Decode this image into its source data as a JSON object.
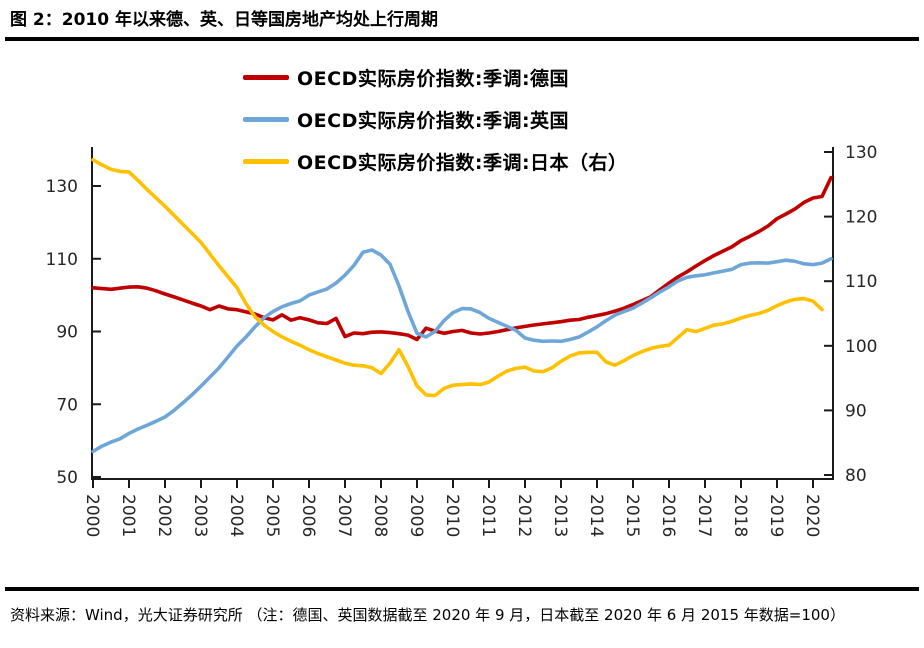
{
  "header": {
    "title": "图 2：2010 年以来德、英、日等国房地产均处上行周期"
  },
  "footer": {
    "source": "资料来源：Wind，光大证券研究所  （注：德国、英国数据截至 2020 年 9 月，日本截至 2020 年 6 月   2015 年数据=100）"
  },
  "chart_data": {
    "type": "line",
    "title": "",
    "grid": false,
    "legend_position": "top-center",
    "note": "2015 年数据=100, quarterly series",
    "axis_color": "#1a1a1a",
    "x_start": 2000,
    "x_step_years": 0.25,
    "x_ticks": [
      "2000",
      "2001",
      "2002",
      "2003",
      "2004",
      "2005",
      "2006",
      "2007",
      "2008",
      "2009",
      "2010",
      "2011",
      "2012",
      "2013",
      "2014",
      "2015",
      "2016",
      "2017",
      "2018",
      "2019",
      "2020"
    ],
    "left_axis": {
      "ticks": [
        50,
        70,
        90,
        110,
        130
      ],
      "range": [
        50,
        136.2
      ]
    },
    "right_axis": {
      "ticks": [
        80,
        90,
        100,
        110,
        120,
        130
      ],
      "range": [
        80,
        130.8
      ]
    },
    "series": [
      {
        "name": "OECD实际房价指数:季调:德国",
        "axis": "left",
        "color": "#C00000",
        "values": [
          102.0,
          101.8,
          101.6,
          101.9,
          102.2,
          102.3,
          101.9,
          101.2,
          100.3,
          99.5,
          98.7,
          97.8,
          97.0,
          96.0,
          97.0,
          96.2,
          96.0,
          95.4,
          94.8,
          93.8,
          93.2,
          94.6,
          93.1,
          93.8,
          93.2,
          92.4,
          92.2,
          93.6,
          88.6,
          89.6,
          89.4,
          89.8,
          89.9,
          89.7,
          89.4,
          89.0,
          87.8,
          90.9,
          90.1,
          89.5,
          90.0,
          90.3,
          89.6,
          89.3,
          89.6,
          90.0,
          90.5,
          91.0,
          91.4,
          91.8,
          92.1,
          92.4,
          92.7,
          93.1,
          93.3,
          93.9,
          94.4,
          94.9,
          95.6,
          96.4,
          97.4,
          98.5,
          99.6,
          101.5,
          103.3,
          105.0,
          106.4,
          108.0,
          109.5,
          110.9,
          112.1,
          113.3,
          115.0,
          116.2,
          117.5,
          119.0,
          121.0,
          122.3,
          123.7,
          125.5,
          126.7,
          127.1,
          132.3
        ]
      },
      {
        "name": "OECD实际房价指数:季调:英国",
        "axis": "left",
        "color": "#6FA6D8",
        "values": [
          57.0,
          58.5,
          59.6,
          60.5,
          62.0,
          63.2,
          64.2,
          65.3,
          66.5,
          68.3,
          70.4,
          72.6,
          75.0,
          77.5,
          80.0,
          83.0,
          86.0,
          88.5,
          91.3,
          93.8,
          95.5,
          96.8,
          97.7,
          98.4,
          100.0,
          100.9,
          101.7,
          103.3,
          105.5,
          108.2,
          111.8,
          112.4,
          111.0,
          108.5,
          102.5,
          95.5,
          89.5,
          88.5,
          90.0,
          93.0,
          95.2,
          96.3,
          96.2,
          95.2,
          93.6,
          92.5,
          91.4,
          90.3,
          88.2,
          87.6,
          87.3,
          87.4,
          87.3,
          87.8,
          88.5,
          89.8,
          91.3,
          93.0,
          94.5,
          95.5,
          96.4,
          97.8,
          99.3,
          100.9,
          102.3,
          103.9,
          104.9,
          105.3,
          105.6,
          106.1,
          106.6,
          107.1,
          108.4,
          108.8,
          108.9,
          108.8,
          109.2,
          109.6,
          109.3,
          108.6,
          108.4,
          108.8,
          110.0
        ]
      },
      {
        "name": "OECD实际房价指数:季调:日本（右）",
        "axis": "right",
        "color": "#FFC000",
        "values": [
          128.8,
          128.0,
          127.3,
          127.0,
          126.9,
          125.6,
          124.2,
          122.9,
          121.6,
          120.2,
          118.8,
          117.4,
          116.0,
          114.2,
          112.4,
          110.7,
          109.0,
          106.5,
          104.5,
          103.2,
          102.2,
          101.4,
          100.7,
          100.1,
          99.4,
          98.8,
          98.3,
          97.8,
          97.3,
          97.0,
          96.9,
          96.6,
          95.7,
          97.3,
          99.4,
          96.8,
          93.8,
          92.4,
          92.3,
          93.4,
          93.9,
          94.0,
          94.1,
          94.0,
          94.4,
          95.3,
          96.1,
          96.5,
          96.7,
          96.1,
          96.0,
          96.6,
          97.6,
          98.4,
          98.9,
          99.0,
          99.0,
          97.5,
          97.0,
          97.7,
          98.5,
          99.1,
          99.6,
          99.9,
          100.1,
          101.3,
          102.5,
          102.2,
          102.7,
          103.2,
          103.4,
          103.8,
          104.3,
          104.7,
          105.0,
          105.5,
          106.2,
          106.8,
          107.2,
          107.3,
          106.9,
          105.6
        ]
      }
    ]
  }
}
